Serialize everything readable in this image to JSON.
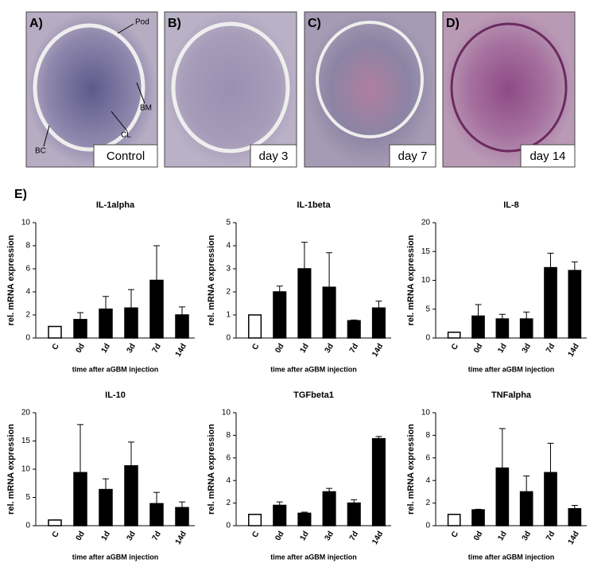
{
  "figure_label": "E)",
  "images": {
    "panels": [
      {
        "letter": "A)",
        "caption": "Control",
        "annotations": [
          "Pod",
          "BM",
          "CL",
          "BC"
        ]
      },
      {
        "letter": "B)",
        "caption": "day 3"
      },
      {
        "letter": "C)",
        "caption": "day 7"
      },
      {
        "letter": "D)",
        "caption": "day 14"
      }
    ]
  },
  "chart_data": [
    {
      "type": "bar",
      "title": "IL-1alpha",
      "x_label": "time after aGBM injection",
      "y_label": "rel. mRNA expression",
      "categories": [
        "C",
        "0d",
        "1d",
        "3d",
        "7d",
        "14d"
      ],
      "values": [
        1,
        1.6,
        2.5,
        2.6,
        5,
        2
      ],
      "errors": [
        0,
        0.6,
        1.1,
        1.6,
        3,
        0.7
      ],
      "bar_colors": [
        "#ffffff",
        "#000000",
        "#000000",
        "#000000",
        "#000000",
        "#000000"
      ],
      "ylim": [
        0,
        10
      ],
      "yticks": [
        0,
        2,
        4,
        6,
        8,
        10
      ]
    },
    {
      "type": "bar",
      "title": "IL-1beta",
      "x_label": "time after aGBM injection",
      "y_label": "rel. mRNA expression",
      "categories": [
        "C",
        "0d",
        "1d",
        "3d",
        "7d",
        "14d"
      ],
      "values": [
        1,
        2,
        3,
        2.2,
        0.75,
        1.3
      ],
      "errors": [
        0,
        0.25,
        1.15,
        1.5,
        0.03,
        0.3
      ],
      "bar_colors": [
        "#ffffff",
        "#000000",
        "#000000",
        "#000000",
        "#000000",
        "#000000"
      ],
      "ylim": [
        0,
        5
      ],
      "yticks": [
        0,
        1,
        2,
        3,
        4,
        5
      ]
    },
    {
      "type": "bar",
      "title": "IL-8",
      "x_label": "time after aGBM injection",
      "y_label": "rel. mRNA expression",
      "categories": [
        "C",
        "0d",
        "1d",
        "3d",
        "7d",
        "14d"
      ],
      "values": [
        1,
        3.8,
        3.3,
        3.3,
        12.2,
        11.7
      ],
      "errors": [
        0,
        2,
        0.8,
        1.2,
        2.5,
        1.5
      ],
      "bar_colors": [
        "#ffffff",
        "#000000",
        "#000000",
        "#000000",
        "#000000",
        "#000000"
      ],
      "ylim": [
        0,
        20
      ],
      "yticks": [
        0,
        5,
        10,
        15,
        20
      ]
    },
    {
      "type": "bar",
      "title": "IL-10",
      "x_label": "time after aGBM injection",
      "y_label": "rel. mRNA expression",
      "categories": [
        "C",
        "0d",
        "1d",
        "3d",
        "7d",
        "14d"
      ],
      "values": [
        1,
        9.4,
        6.4,
        10.6,
        3.9,
        3.2
      ],
      "errors": [
        0,
        8.5,
        1.9,
        4.2,
        2,
        1
      ],
      "bar_colors": [
        "#ffffff",
        "#000000",
        "#000000",
        "#000000",
        "#000000",
        "#000000"
      ],
      "ylim": [
        0,
        20
      ],
      "yticks": [
        0,
        5,
        10,
        15,
        20
      ]
    },
    {
      "type": "bar",
      "title": "TGFbeta1",
      "x_label": "time after aGBM injection",
      "y_label": "rel. mRNA expression",
      "categories": [
        "C",
        "0d",
        "1d",
        "3d",
        "7d",
        "14d"
      ],
      "values": [
        1,
        1.8,
        1.1,
        3,
        2,
        7.7
      ],
      "errors": [
        0,
        0.3,
        0.1,
        0.3,
        0.3,
        0.2
      ],
      "bar_colors": [
        "#ffffff",
        "#000000",
        "#000000",
        "#000000",
        "#000000",
        "#000000"
      ],
      "ylim": [
        0,
        10
      ],
      "yticks": [
        0,
        2,
        4,
        6,
        8,
        10
      ]
    },
    {
      "type": "bar",
      "title": "TNFalpha",
      "x_label": "time after aGBM injection",
      "y_label": "rel. mRNA expression",
      "categories": [
        "C",
        "0d",
        "1d",
        "3d",
        "7d",
        "14d"
      ],
      "values": [
        1,
        1.4,
        5.1,
        3,
        4.7,
        1.5
      ],
      "errors": [
        0,
        0.05,
        3.5,
        1.4,
        2.6,
        0.3
      ],
      "bar_colors": [
        "#ffffff",
        "#000000",
        "#000000",
        "#000000",
        "#000000",
        "#000000"
      ],
      "ylim": [
        0,
        10
      ],
      "yticks": [
        0,
        2,
        4,
        6,
        8,
        10
      ]
    }
  ]
}
